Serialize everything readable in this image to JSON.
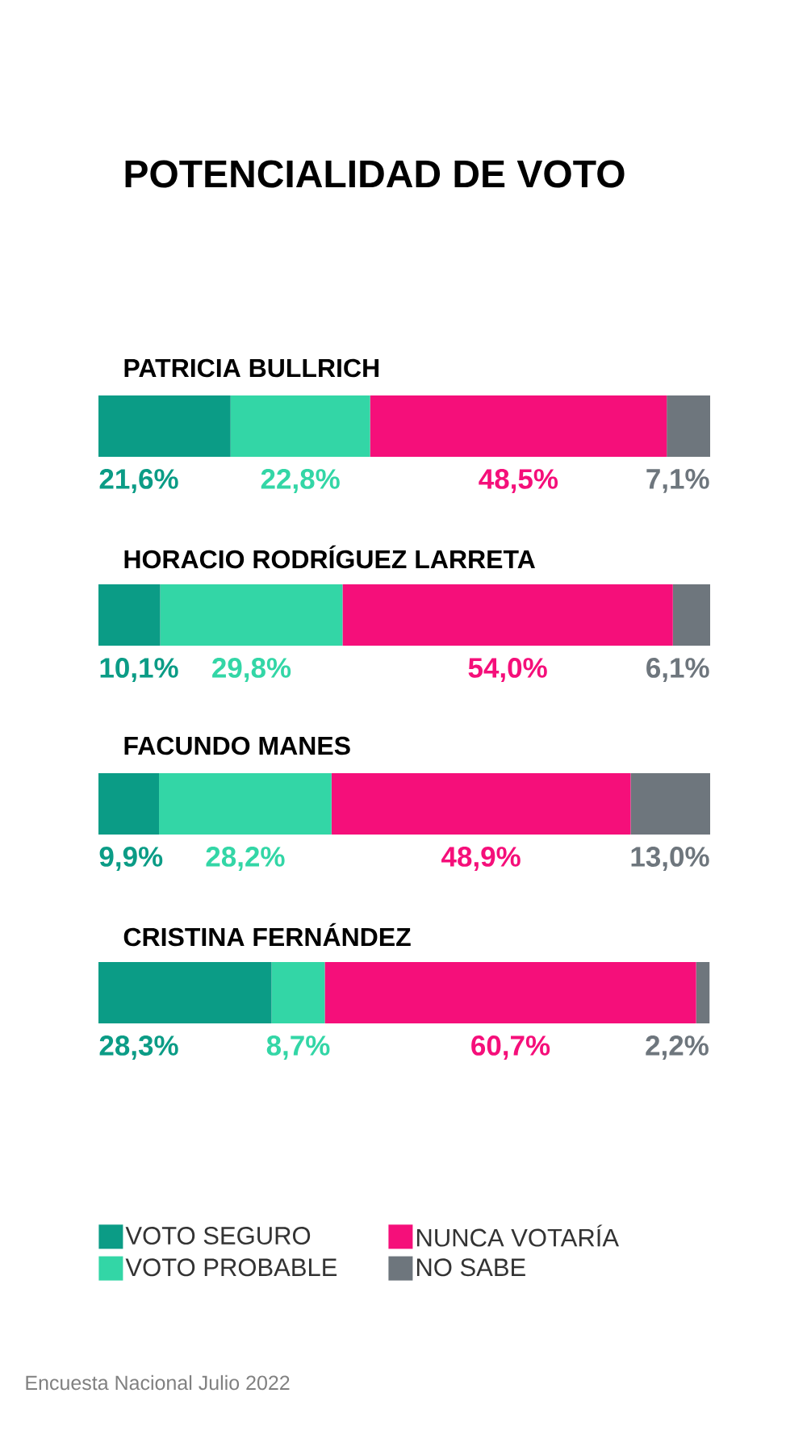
{
  "chart_data": {
    "type": "bar",
    "orientation": "horizontal",
    "stacked": true,
    "title": "POTENCIALIDAD DE VOTO",
    "categories": [
      "PATRICIA BULLRICH",
      "HORACIO RODRÍGUEZ LARRETA",
      "FACUNDO MANES",
      "CRISTINA FERNÁNDEZ"
    ],
    "series": [
      {
        "name": "VOTO SEGURO",
        "color": "#0b9c86",
        "values": [
          21.6,
          10.1,
          9.9,
          28.3
        ],
        "value_labels": [
          "21,6%",
          "10,1%",
          "9,9%",
          "28,3%"
        ]
      },
      {
        "name": "VOTO PROBABLE",
        "color": "#33d6a6",
        "values": [
          22.8,
          29.8,
          28.2,
          8.7
        ],
        "value_labels": [
          "22,8%",
          "29,8%",
          "28,2%",
          "8,7%"
        ]
      },
      {
        "name": "NUNCA VOTARÍA",
        "color": "#f50f7a",
        "values": [
          48.5,
          54.0,
          48.9,
          60.7
        ],
        "value_labels": [
          "48,5%",
          "54,0%",
          "48,9%",
          "60,7%"
        ]
      },
      {
        "name": "NO SABE",
        "color": "#6e767d",
        "values": [
          7.1,
          6.1,
          13.0,
          2.2
        ],
        "value_labels": [
          "7,1%",
          "6,1%",
          "13,0%",
          "2,2%"
        ]
      }
    ],
    "xlim": [
      0,
      100
    ],
    "tick_labels": "y",
    "legend": "bottom",
    "annotations": [
      "Encuesta Nacional Julio 2022"
    ]
  }
}
